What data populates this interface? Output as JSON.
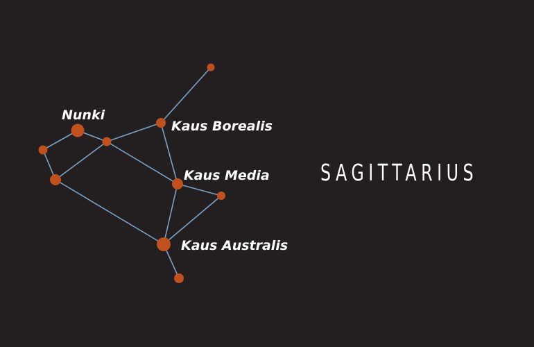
{
  "title": "SAGITTARIUS",
  "colors": {
    "background": "#231f20",
    "line": "#7ba3c7",
    "star": "#c0501e",
    "text": "#ffffff"
  },
  "stars": [
    {
      "id": "top",
      "label": ""
    },
    {
      "id": "kaus-borealis",
      "label": "Kaus Borealis"
    },
    {
      "id": "nunki",
      "label": "Nunki"
    },
    {
      "id": "center",
      "label": ""
    },
    {
      "id": "far-left",
      "label": ""
    },
    {
      "id": "left",
      "label": ""
    },
    {
      "id": "kaus-media",
      "label": "Kaus Media"
    },
    {
      "id": "right",
      "label": ""
    },
    {
      "id": "kaus-australis",
      "label": "Kaus Australis"
    },
    {
      "id": "bottom",
      "label": ""
    }
  ],
  "connections": [
    [
      "top",
      "kaus-borealis"
    ],
    [
      "kaus-borealis",
      "center"
    ],
    [
      "kaus-borealis",
      "kaus-media"
    ],
    [
      "nunki",
      "center"
    ],
    [
      "nunki",
      "far-left"
    ],
    [
      "far-left",
      "left"
    ],
    [
      "center",
      "left"
    ],
    [
      "center",
      "kaus-media"
    ],
    [
      "kaus-media",
      "right"
    ],
    [
      "kaus-media",
      "kaus-australis"
    ],
    [
      "right",
      "kaus-australis"
    ],
    [
      "left",
      "kaus-australis"
    ],
    [
      "kaus-australis",
      "bottom"
    ]
  ]
}
